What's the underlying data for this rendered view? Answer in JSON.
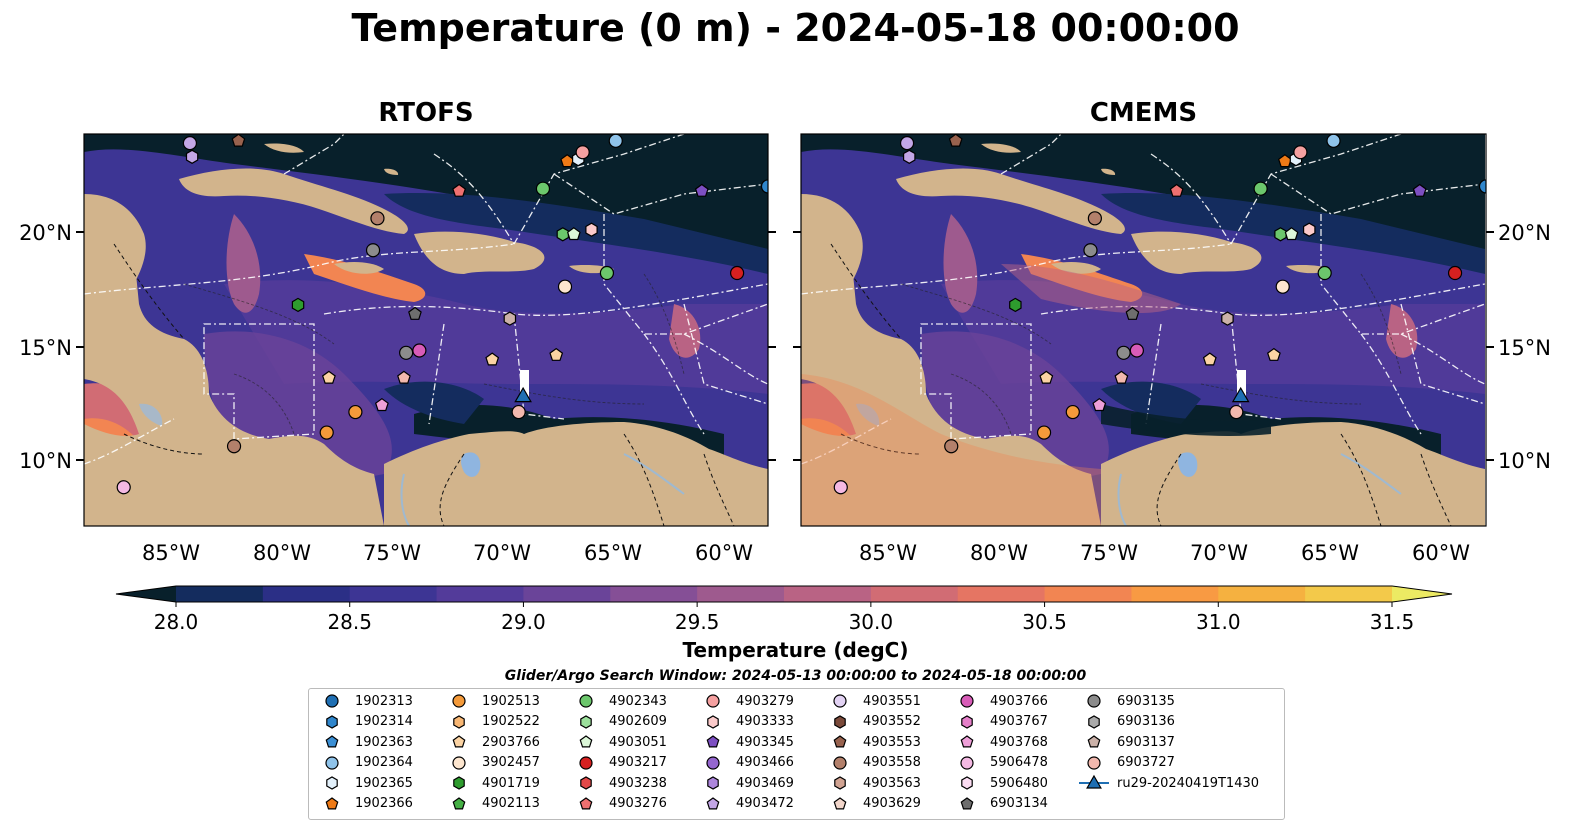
{
  "title": "Temperature (0 m) - 2024-05-18 00:00:00",
  "panels": [
    {
      "title": "RTOFS"
    },
    {
      "title": "CMEMS"
    }
  ],
  "axes": {
    "lon_ticks": [
      "85°W",
      "80°W",
      "75°W",
      "70°W",
      "65°W",
      "60°W"
    ],
    "lat_ticks": [
      "20°N",
      "15°N",
      "10°N"
    ],
    "lon_range": [
      -89,
      -58
    ],
    "lat_range": [
      7,
      24.2
    ]
  },
  "colorbar": {
    "label": "Temperature (degC)",
    "ticks": [
      "28.0",
      "28.5",
      "29.0",
      "29.5",
      "30.0",
      "30.5",
      "31.0",
      "31.5"
    ],
    "range": [
      28.0,
      31.5
    ],
    "colors": [
      "#08202b",
      "#142c5e",
      "#2b2f86",
      "#3d3594",
      "#533b9a",
      "#6a4499",
      "#854f96",
      "#9e5a8e",
      "#b96384",
      "#d16c74",
      "#e57563",
      "#f28552",
      "#f89a43",
      "#f5b140",
      "#f3c94a",
      "#ecea63"
    ],
    "extend": "both"
  },
  "search_window": "Glider/Argo Search Window: 2024-05-13 00:00:00 to 2024-05-18 00:00:00",
  "legend": [
    {
      "id": "1902313",
      "marker": "circle",
      "color": "#1f6fb3"
    },
    {
      "id": "1902314",
      "marker": "hexagon",
      "color": "#2f86cc"
    },
    {
      "id": "1902363",
      "marker": "pentagon",
      "color": "#3b8fd4"
    },
    {
      "id": "1902364",
      "marker": "circle",
      "color": "#8fc3ea"
    },
    {
      "id": "1902365",
      "marker": "hexagon",
      "color": "#e3f1fb"
    },
    {
      "id": "1902366",
      "marker": "pentagon",
      "color": "#ef7a16"
    },
    {
      "id": "1902513",
      "marker": "circle",
      "color": "#f49a3a"
    },
    {
      "id": "1902522",
      "marker": "hexagon",
      "color": "#f8b774"
    },
    {
      "id": "2903766",
      "marker": "pentagon",
      "color": "#fbd3a3"
    },
    {
      "id": "3902457",
      "marker": "circle",
      "color": "#fde6cf"
    },
    {
      "id": "4901719",
      "marker": "hexagon",
      "color": "#2e9c2e"
    },
    {
      "id": "4902113",
      "marker": "pentagon",
      "color": "#45b045"
    },
    {
      "id": "4902343",
      "marker": "circle",
      "color": "#6cc76c"
    },
    {
      "id": "4902609",
      "marker": "hexagon",
      "color": "#9ce09c"
    },
    {
      "id": "4903051",
      "marker": "pentagon",
      "color": "#dcf7d8"
    },
    {
      "id": "4903217",
      "marker": "circle",
      "color": "#d62020"
    },
    {
      "id": "4903238",
      "marker": "hexagon",
      "color": "#e24848"
    },
    {
      "id": "4903276",
      "marker": "pentagon",
      "color": "#ef7070"
    },
    {
      "id": "4903279",
      "marker": "circle",
      "color": "#f5a0a0"
    },
    {
      "id": "4903333",
      "marker": "hexagon",
      "color": "#fbcaca"
    },
    {
      "id": "4903345",
      "marker": "pentagon",
      "color": "#7d4fc2"
    },
    {
      "id": "4903466",
      "marker": "circle",
      "color": "#9566cf"
    },
    {
      "id": "4903469",
      "marker": "hexagon",
      "color": "#ad86dc"
    },
    {
      "id": "4903472",
      "marker": "pentagon",
      "color": "#c3a6e6"
    },
    {
      "id": "4903551",
      "marker": "circle",
      "color": "#e2d2f3"
    },
    {
      "id": "4903552",
      "marker": "hexagon",
      "color": "#7b4a3a"
    },
    {
      "id": "4903553",
      "marker": "pentagon",
      "color": "#98624e"
    },
    {
      "id": "4903558",
      "marker": "circle",
      "color": "#b3806b"
    },
    {
      "id": "4903563",
      "marker": "hexagon",
      "color": "#d1a392"
    },
    {
      "id": "4903629",
      "marker": "pentagon",
      "color": "#f2d6cb"
    },
    {
      "id": "4903766",
      "marker": "circle",
      "color": "#d85cb8"
    },
    {
      "id": "4903767",
      "marker": "hexagon",
      "color": "#e57fc9"
    },
    {
      "id": "4903768",
      "marker": "pentagon",
      "color": "#ee9fd8"
    },
    {
      "id": "5906478",
      "marker": "circle",
      "color": "#f4b9e3"
    },
    {
      "id": "5906480",
      "marker": "hexagon",
      "color": "#fbdcf2"
    },
    {
      "id": "6903134",
      "marker": "pentagon",
      "color": "#6e6e6e"
    },
    {
      "id": "6903135",
      "marker": "circle",
      "color": "#8c8c8c"
    },
    {
      "id": "6903136",
      "marker": "hexagon",
      "color": "#aaaaaa"
    },
    {
      "id": "6903137",
      "marker": "pentagon",
      "color": "#cbb1a8"
    },
    {
      "id": "6903727",
      "marker": "circle",
      "color": "#f2b8ae"
    },
    {
      "id": "ru29-20240419T1430",
      "marker": "triangle-line",
      "color": "#1f6fb3"
    }
  ],
  "floats": [
    {
      "lon": -87.2,
      "lat": 8.7,
      "color": "#f4b9e3",
      "marker": "circle"
    },
    {
      "lon": -82.2,
      "lat": 10.5,
      "color": "#b3806b",
      "marker": "circle"
    },
    {
      "lon": -78.0,
      "lat": 11.1,
      "color": "#f49a3a",
      "marker": "circle"
    },
    {
      "lon": -76.7,
      "lat": 12.0,
      "color": "#f49a3a",
      "marker": "circle"
    },
    {
      "lon": -77.9,
      "lat": 13.5,
      "color": "#fbd3a3",
      "marker": "pentagon"
    },
    {
      "lon": -75.5,
      "lat": 12.3,
      "color": "#ee9fd8",
      "marker": "pentagon"
    },
    {
      "lon": -74.5,
      "lat": 13.5,
      "color": "#f2b8ae",
      "marker": "pentagon"
    },
    {
      "lon": -73.8,
      "lat": 14.7,
      "color": "#d85cb8",
      "marker": "circle"
    },
    {
      "lon": -74.4,
      "lat": 14.6,
      "color": "#8c8c8c",
      "marker": "circle"
    },
    {
      "lon": -74.0,
      "lat": 16.3,
      "color": "#6e6e6e",
      "marker": "pentagon"
    },
    {
      "lon": -79.3,
      "lat": 16.7,
      "color": "#2e9c2e",
      "marker": "hexagon"
    },
    {
      "lon": -70.5,
      "lat": 14.3,
      "color": "#fbd3a3",
      "marker": "pentagon"
    },
    {
      "lon": -69.7,
      "lat": 16.1,
      "color": "#cbb1a8",
      "marker": "hexagon"
    },
    {
      "lon": -69.3,
      "lat": 12.0,
      "color": "#f2b8ae",
      "marker": "circle"
    },
    {
      "lon": -67.6,
      "lat": 14.5,
      "color": "#fbd3a3",
      "marker": "pentagon"
    },
    {
      "lon": -67.2,
      "lat": 17.5,
      "color": "#fde6cf",
      "marker": "circle"
    },
    {
      "lon": -75.7,
      "lat": 20.5,
      "color": "#b3806b",
      "marker": "circle"
    },
    {
      "lon": -75.9,
      "lat": 19.1,
      "color": "#8c8c8c",
      "marker": "circle"
    },
    {
      "lon": -65.3,
      "lat": 18.1,
      "color": "#6cc76c",
      "marker": "circle"
    },
    {
      "lon": -68.2,
      "lat": 21.8,
      "color": "#6cc76c",
      "marker": "circle"
    },
    {
      "lon": -67.3,
      "lat": 19.8,
      "color": "#6cc76c",
      "marker": "hexagon"
    },
    {
      "lon": -66.8,
      "lat": 19.8,
      "color": "#dcf7d8",
      "marker": "pentagon"
    },
    {
      "lon": -66.0,
      "lat": 20.0,
      "color": "#fbcaca",
      "marker": "hexagon"
    },
    {
      "lon": -72.0,
      "lat": 21.7,
      "color": "#ef7070",
      "marker": "pentagon"
    },
    {
      "lon": -67.1,
      "lat": 23.0,
      "color": "#ef7a16",
      "marker": "pentagon"
    },
    {
      "lon": -66.6,
      "lat": 23.1,
      "color": "#e3f1fb",
      "marker": "hexagon"
    },
    {
      "lon": -66.4,
      "lat": 23.4,
      "color": "#f5a0a0",
      "marker": "circle"
    },
    {
      "lon": -64.9,
      "lat": 23.9,
      "color": "#8fc3ea",
      "marker": "circle"
    },
    {
      "lon": -61.0,
      "lat": 21.7,
      "color": "#7d4fc2",
      "marker": "pentagon"
    },
    {
      "lon": -59.4,
      "lat": 18.1,
      "color": "#d62020",
      "marker": "circle"
    },
    {
      "lon": -58.0,
      "lat": 21.9,
      "color": "#2f86cc",
      "marker": "circle"
    },
    {
      "lon": -82.0,
      "lat": 23.9,
      "color": "#98624e",
      "marker": "pentagon"
    },
    {
      "lon": -84.2,
      "lat": 23.8,
      "color": "#c3a6e6",
      "marker": "circle"
    },
    {
      "lon": -84.1,
      "lat": 23.2,
      "color": "#c3a6e6",
      "marker": "hexagon"
    }
  ],
  "glider": {
    "id": "ru29-20240419T1430",
    "lon": -69.1,
    "lat": 12.7,
    "color": "#1f6fb3"
  }
}
